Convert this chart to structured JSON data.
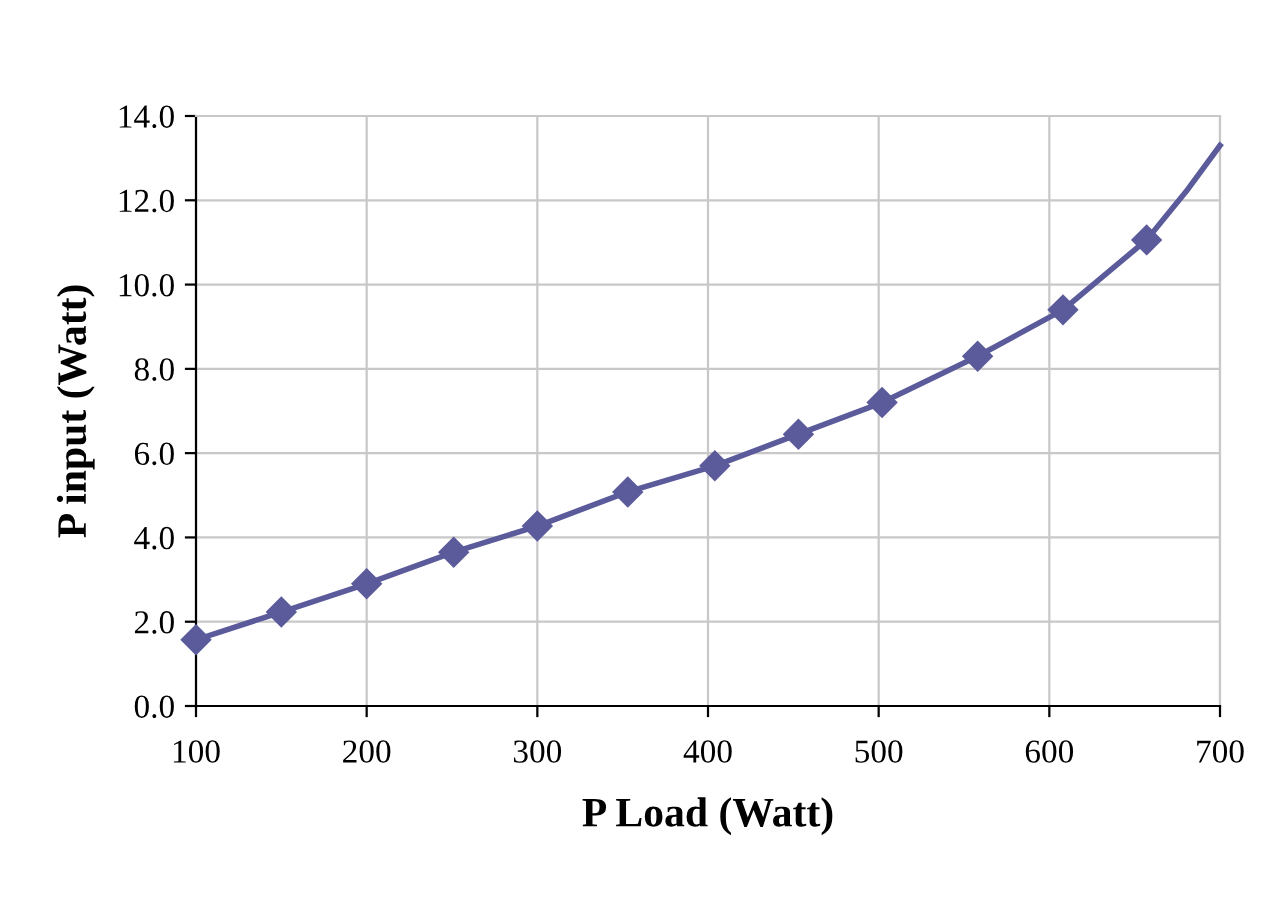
{
  "chart_data": {
    "type": "line",
    "xlabel": "P Load (Watt)",
    "ylabel": "P input (Watt)",
    "series": [
      {
        "color": "#5b5b9b",
        "marker": "diamond",
        "x": [
          100,
          150,
          200,
          251,
          300,
          353,
          404,
          453,
          502,
          558,
          608,
          657
        ],
        "values": [
          1.57,
          2.23,
          2.9,
          3.65,
          4.27,
          5.08,
          5.7,
          6.45,
          7.2,
          8.3,
          9.4,
          11.06
        ]
      },
      {
        "color": "#5b5b9b",
        "marker": "none",
        "x": [
          657,
          680,
          700
        ],
        "values": [
          11.06,
          12.2,
          13.3
        ]
      }
    ],
    "xlim": [
      100,
      700
    ],
    "xticks": [
      100,
      200,
      300,
      400,
      500,
      600,
      700
    ],
    "ylim": [
      0,
      14
    ],
    "yticks": [
      {
        "value": 0,
        "label": "0.0"
      },
      {
        "value": 2,
        "label": "2.0"
      },
      {
        "value": 4,
        "label": "4.0"
      },
      {
        "value": 6,
        "label": "6.0"
      },
      {
        "value": 8,
        "label": "8.0"
      },
      {
        "value": 10,
        "label": "10.0"
      },
      {
        "value": 12,
        "label": "12.0"
      },
      {
        "value": 14,
        "label": "14.0"
      }
    ],
    "grid": true,
    "line_style": "solid",
    "legend": false
  }
}
